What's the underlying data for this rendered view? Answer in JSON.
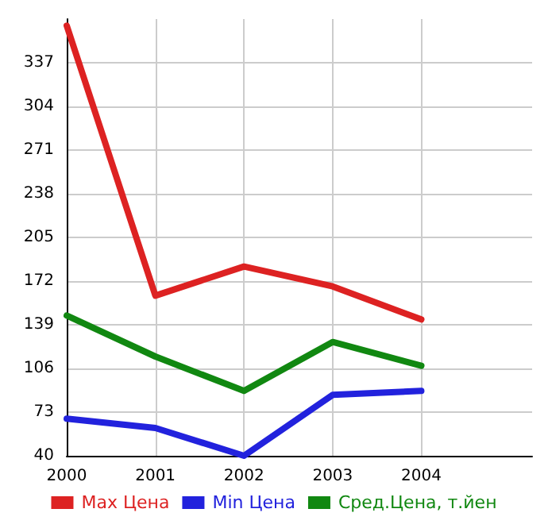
{
  "chart_data": {
    "type": "line",
    "x": [
      2000,
      2001,
      2002,
      2003,
      2004
    ],
    "xlim": [
      2000,
      2005.25
    ],
    "xticks": [
      2000,
      2001,
      2002,
      2003,
      2004
    ],
    "ylim": [
      40,
      370
    ],
    "yticks": [
      40,
      73,
      106,
      139,
      172,
      205,
      238,
      271,
      304,
      337
    ],
    "grid": true,
    "legend": "bottom",
    "marker": "none",
    "line_style": "solid",
    "series": [
      {
        "name": "Max Цена",
        "color": "#dd2222",
        "values": [
          365,
          161,
          183,
          168,
          143
        ]
      },
      {
        "name": "Min Цена",
        "color": "#2222dd",
        "values": [
          68,
          61,
          40,
          86,
          89
        ]
      },
      {
        "name": "Сред.Цена, т.йен",
        "color": "#118811",
        "values": [
          146,
          115,
          89,
          126,
          108
        ]
      }
    ]
  }
}
